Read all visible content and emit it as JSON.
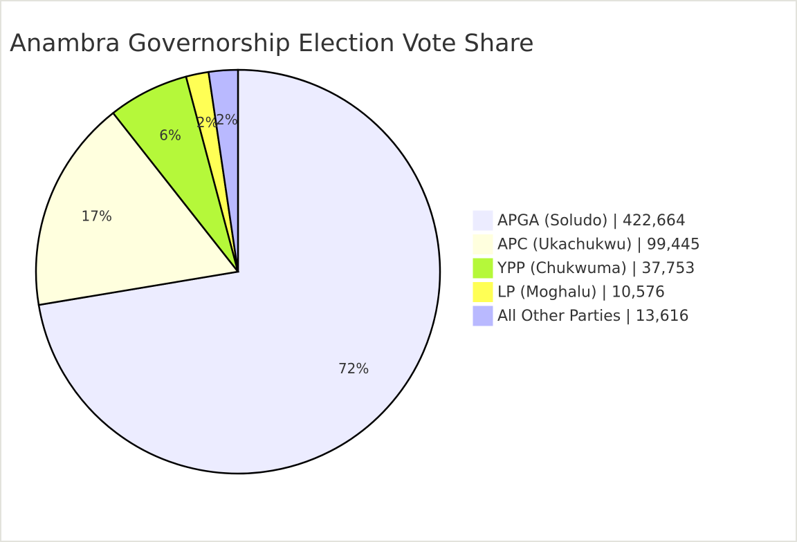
{
  "chart_data": {
    "type": "pie",
    "title": "Anambra Governorship Election Vote Share",
    "categories": [
      "APGA (Soludo) | 422,664",
      "APC (Ukachukwu) | 99,445",
      "YPP (Chukwuma) | 37,753",
      "LP (Moghalu) | 10,576",
      "All Other Parties | 13,616"
    ],
    "values": [
      422664,
      99445,
      37753,
      10576,
      13616
    ],
    "value_labels": [
      "72%",
      "17%",
      "6%",
      "2%",
      "2%"
    ],
    "colors": [
      "#ececff",
      "#ffffde",
      "#b5f83a",
      "#ffff55",
      "#b9b9ff"
    ]
  }
}
